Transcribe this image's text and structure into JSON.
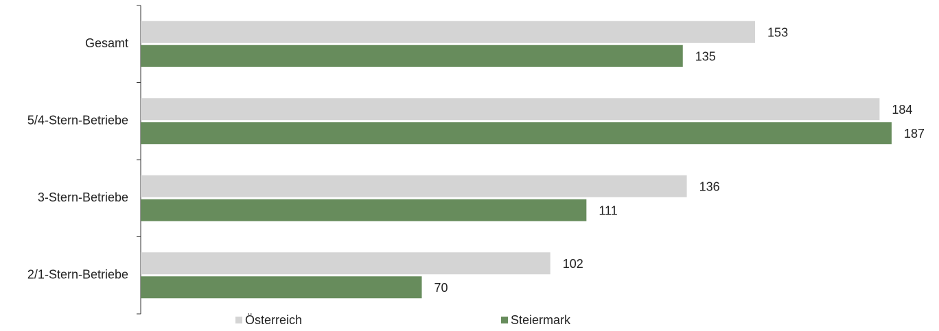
{
  "chart_data": {
    "type": "bar",
    "orientation": "horizontal",
    "categories": [
      "Gesamt",
      "5/4-Stern-Betriebe",
      "3-Stern-Betriebe",
      "2/1-Stern-Betriebe"
    ],
    "series": [
      {
        "name": "Österreich",
        "color": "#d4d4d4",
        "values": [
          153,
          184,
          136,
          102
        ]
      },
      {
        "name": "Steiermark",
        "color": "#678c5c",
        "values": [
          135,
          187,
          111,
          70
        ]
      }
    ]
  }
}
